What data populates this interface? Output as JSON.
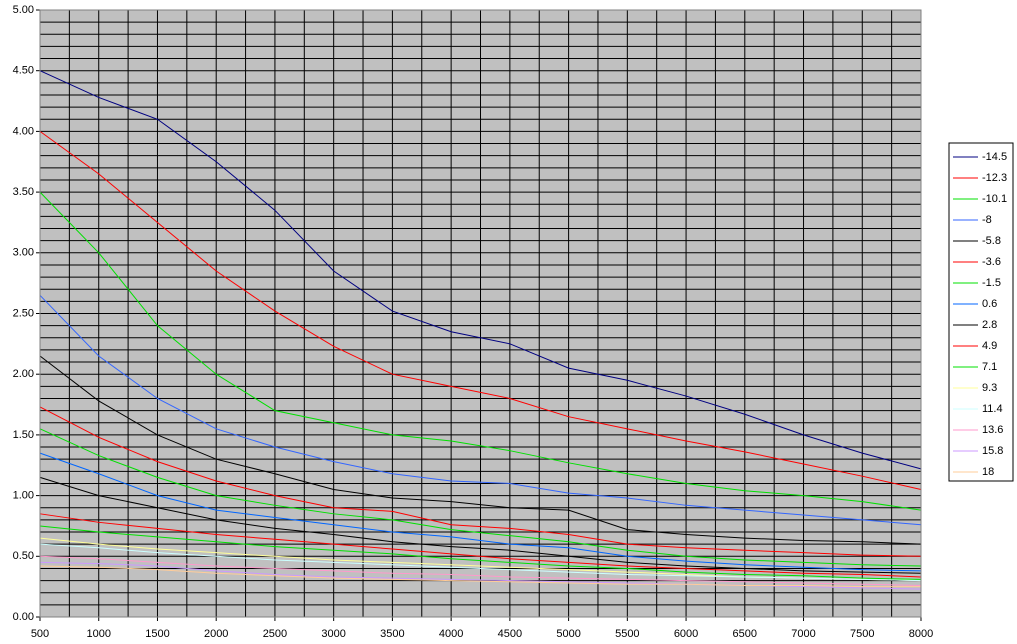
{
  "chart_data": {
    "type": "line",
    "x": [
      500,
      1000,
      1500,
      2000,
      2500,
      3000,
      3500,
      4000,
      4500,
      5000,
      5500,
      6000,
      6500,
      7000,
      7500,
      8000
    ],
    "series": [
      {
        "name": "-14.5",
        "color": "#000080",
        "values": [
          4.5,
          4.28,
          4.1,
          3.75,
          3.35,
          2.85,
          2.52,
          2.35,
          2.25,
          2.05,
          1.95,
          1.82,
          1.67,
          1.5,
          1.35,
          1.22
        ]
      },
      {
        "name": "-12.3",
        "color": "#ff0000",
        "values": [
          4.0,
          3.65,
          3.25,
          2.85,
          2.52,
          2.23,
          2.0,
          1.9,
          1.8,
          1.65,
          1.55,
          1.45,
          1.36,
          1.26,
          1.16,
          1.05
        ]
      },
      {
        "name": "-10.1",
        "color": "#00e000",
        "values": [
          3.5,
          3.0,
          2.4,
          2.0,
          1.7,
          1.6,
          1.5,
          1.45,
          1.37,
          1.27,
          1.18,
          1.1,
          1.04,
          1.0,
          0.95,
          0.88
        ]
      },
      {
        "name": "-8",
        "color": "#3366ff",
        "values": [
          2.65,
          2.15,
          1.8,
          1.55,
          1.4,
          1.28,
          1.18,
          1.12,
          1.1,
          1.02,
          0.98,
          0.92,
          0.88,
          0.84,
          0.8,
          0.76
        ]
      },
      {
        "name": "-5.8",
        "color": "#000000",
        "values": [
          2.15,
          1.78,
          1.5,
          1.3,
          1.18,
          1.05,
          0.98,
          0.95,
          0.9,
          0.88,
          0.72,
          0.68,
          0.65,
          0.63,
          0.62,
          0.6
        ]
      },
      {
        "name": "-3.6",
        "color": "#ff0000",
        "values": [
          1.73,
          1.48,
          1.28,
          1.12,
          1.0,
          0.9,
          0.87,
          0.76,
          0.73,
          0.68,
          0.6,
          0.57,
          0.55,
          0.53,
          0.51,
          0.5
        ]
      },
      {
        "name": "-1.5",
        "color": "#00e000",
        "values": [
          1.55,
          1.33,
          1.15,
          1.0,
          0.92,
          0.85,
          0.8,
          0.72,
          0.67,
          0.62,
          0.55,
          0.5,
          0.47,
          0.45,
          0.43,
          0.42
        ]
      },
      {
        "name": "0.6",
        "color": "#0066ff",
        "values": [
          1.35,
          1.18,
          1.0,
          0.88,
          0.82,
          0.76,
          0.7,
          0.66,
          0.6,
          0.57,
          0.5,
          0.46,
          0.43,
          0.41,
          0.39,
          0.38
        ]
      },
      {
        "name": "2.8",
        "color": "#000000",
        "values": [
          1.15,
          1.0,
          0.9,
          0.8,
          0.73,
          0.68,
          0.62,
          0.58,
          0.55,
          0.5,
          0.45,
          0.42,
          0.4,
          0.38,
          0.37,
          0.36
        ]
      },
      {
        "name": "4.9",
        "color": "#ff0000",
        "values": [
          0.85,
          0.78,
          0.73,
          0.68,
          0.64,
          0.6,
          0.56,
          0.52,
          0.48,
          0.45,
          0.42,
          0.4,
          0.38,
          0.36,
          0.35,
          0.33
        ]
      },
      {
        "name": "7.1",
        "color": "#00e000",
        "values": [
          0.75,
          0.7,
          0.66,
          0.62,
          0.58,
          0.55,
          0.52,
          0.48,
          0.45,
          0.42,
          0.4,
          0.37,
          0.35,
          0.34,
          0.32,
          0.31
        ]
      },
      {
        "name": "9.3",
        "color": "#ffff99",
        "values": [
          0.65,
          0.6,
          0.56,
          0.53,
          0.5,
          0.47,
          0.45,
          0.43,
          0.41,
          0.39,
          0.37,
          0.35,
          0.33,
          0.32,
          0.31,
          0.3
        ]
      },
      {
        "name": "11.4",
        "color": "#ccffff",
        "values": [
          0.6,
          0.57,
          0.53,
          0.5,
          0.47,
          0.45,
          0.43,
          0.41,
          0.39,
          0.37,
          0.35,
          0.34,
          0.33,
          0.32,
          0.31,
          0.3
        ]
      },
      {
        "name": "13.6",
        "color": "#ff99cc",
        "values": [
          0.5,
          0.48,
          0.45,
          0.42,
          0.4,
          0.38,
          0.36,
          0.35,
          0.33,
          0.32,
          0.31,
          0.3,
          0.29,
          0.28,
          0.27,
          0.26
        ]
      },
      {
        "name": "15.8",
        "color": "#cc99ff",
        "values": [
          0.45,
          0.44,
          0.42,
          0.38,
          0.35,
          0.33,
          0.32,
          0.31,
          0.3,
          0.29,
          0.28,
          0.27,
          0.26,
          0.25,
          0.24,
          0.23
        ]
      },
      {
        "name": "18",
        "color": "#ffcc99",
        "values": [
          0.42,
          0.41,
          0.39,
          0.36,
          0.34,
          0.32,
          0.31,
          0.3,
          0.29,
          0.28,
          0.27,
          0.27,
          0.26,
          0.26,
          0.25,
          0.25
        ]
      }
    ],
    "xlim": [
      500,
      8000
    ],
    "ylim": [
      0,
      5
    ],
    "xticks": [
      500,
      1000,
      1500,
      2000,
      2500,
      3000,
      3500,
      4000,
      4500,
      5000,
      5500,
      6000,
      6500,
      7000,
      7500,
      8000
    ],
    "yticks": [
      {
        "value": 0,
        "label": "0.00"
      },
      {
        "value": 0.5,
        "label": "0.50"
      },
      {
        "value": 1,
        "label": "1.00"
      },
      {
        "value": 1.5,
        "label": "1.50"
      },
      {
        "value": 2,
        "label": "2.00"
      },
      {
        "value": 2.5,
        "label": "2.50"
      },
      {
        "value": 3,
        "label": "3.00"
      },
      {
        "value": 3.5,
        "label": "3.50"
      },
      {
        "value": 4,
        "label": "4.00"
      },
      {
        "value": 4.5,
        "label": "4.50"
      },
      {
        "value": 5,
        "label": "5.00"
      }
    ],
    "x_minor_ticks": [
      500,
      750,
      1000,
      1250,
      1500,
      1750,
      2000,
      2250,
      2500,
      2750,
      3000,
      3250,
      3500,
      3750,
      4000,
      4250,
      4500,
      4750,
      5000,
      5250,
      5500,
      5750,
      6000,
      6250,
      6500,
      6750,
      7000,
      7250,
      7500,
      7750,
      8000
    ],
    "y_minor_ticks": [
      0,
      0.1,
      0.2,
      0.3,
      0.4,
      0.5,
      0.6,
      0.7,
      0.8,
      0.9,
      1,
      1.1,
      1.2,
      1.3,
      1.4,
      1.5,
      1.6,
      1.7,
      1.8,
      1.9,
      2,
      2.1,
      2.2,
      2.3,
      2.4,
      2.5,
      2.6,
      2.7,
      2.8,
      2.9,
      3,
      3.1,
      3.2,
      3.3,
      3.4,
      3.5,
      3.6,
      3.7,
      3.8,
      3.9,
      4,
      4.1,
      4.2,
      4.3,
      4.4,
      4.5,
      4.6,
      4.7,
      4.8,
      4.9,
      5
    ],
    "grid": true,
    "legend": "right"
  }
}
